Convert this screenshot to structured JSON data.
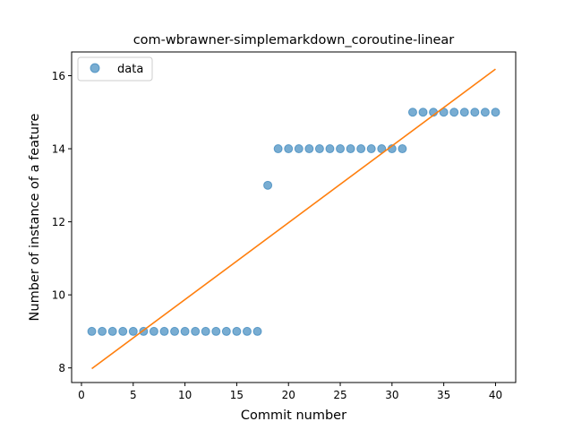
{
  "chart_data": {
    "type": "scatter",
    "title": "com-wbrawner-simplemarkdown_coroutine-linear",
    "xlabel": "Commit number",
    "ylabel": "Number of instance of a feature",
    "xlim": [
      -0.95,
      41.95
    ],
    "ylim": [
      7.6,
      16.65
    ],
    "xticks": [
      0,
      5,
      10,
      15,
      20,
      25,
      30,
      35,
      40
    ],
    "yticks": [
      8,
      10,
      12,
      14,
      16
    ],
    "grid": false,
    "legend": {
      "placement": "top-left",
      "entries": [
        "data"
      ]
    },
    "series": [
      {
        "name": "data",
        "kind": "scatter",
        "color": "#1f77b4",
        "x": [
          1,
          2,
          3,
          4,
          5,
          6,
          7,
          8,
          9,
          10,
          11,
          12,
          13,
          14,
          15,
          16,
          17,
          18,
          19,
          20,
          21,
          22,
          23,
          24,
          25,
          26,
          27,
          28,
          29,
          30,
          31,
          32,
          33,
          34,
          35,
          36,
          37,
          38,
          39,
          40
        ],
        "y": [
          9,
          9,
          9,
          9,
          9,
          9,
          9,
          9,
          9,
          9,
          9,
          9,
          9,
          9,
          9,
          9,
          9,
          13,
          14,
          14,
          14,
          14,
          14,
          14,
          14,
          14,
          14,
          14,
          14,
          14,
          14,
          15,
          15,
          15,
          15,
          15,
          15,
          15,
          15,
          15
        ]
      },
      {
        "kind": "line",
        "color": "#ff7f0e",
        "x": [
          1,
          40
        ],
        "y": [
          7.98,
          16.18
        ]
      }
    ]
  }
}
